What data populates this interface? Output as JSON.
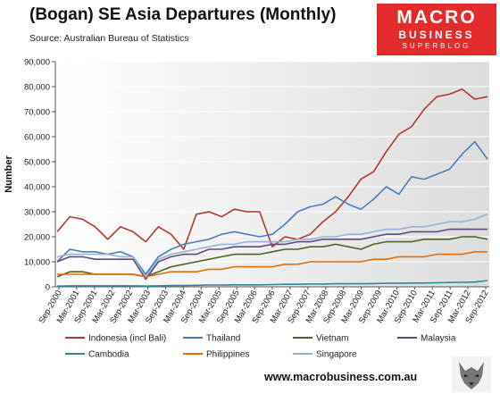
{
  "header": {
    "title": "(Bogan) SE Asia Departures (Monthly)",
    "subtitle": "Source: Australian Bureau of Statistics"
  },
  "logo": {
    "line1": "MACRO",
    "line2": "BUSINESS",
    "line3": "SUPERBLOG"
  },
  "footer": {
    "website": "www.macrobusiness.com.au"
  },
  "chart_data": {
    "type": "line",
    "ylabel": "Number",
    "ylim": [
      0,
      90000
    ],
    "ytick_values": [
      0,
      10000,
      20000,
      30000,
      40000,
      50000,
      60000,
      70000,
      80000,
      90000
    ],
    "ytick_labels": [
      "0",
      "10,000",
      "20,000",
      "30,000",
      "40,000",
      "50,000",
      "60,000",
      "70,000",
      "80,000",
      "90,000"
    ],
    "xtick_labels": [
      "Sep-2000",
      "Mar-2001",
      "Sep-2001",
      "Mar-2002",
      "Sep-2002",
      "Mar-2003",
      "Sep-2003",
      "Mar-2004",
      "Sep-2004",
      "Mar-2005",
      "Sep-2005",
      "Mar-2006",
      "Sep-2006",
      "Mar-2007",
      "Sep-2007",
      "Mar-2008",
      "Sep-2008",
      "Mar-2009",
      "Sep-2009",
      "Mar-2010",
      "Sep-2010",
      "Mar-2011",
      "Sep-2011",
      "Mar-2012",
      "Sep-2012"
    ],
    "legend_position": "bottom",
    "series": [
      {
        "name": "Indonesia (incl Bali)",
        "color": "#b03a2e",
        "values": [
          22000,
          28000,
          27000,
          24000,
          19000,
          24000,
          22000,
          18000,
          24000,
          21000,
          15000,
          29000,
          30000,
          28000,
          31000,
          30000,
          30000,
          16000,
          20000,
          19000,
          21000,
          26000,
          30000,
          36000,
          43000,
          46000,
          54000,
          61000,
          64000,
          71000,
          76000,
          77000,
          79000,
          75000,
          76000
        ]
      },
      {
        "name": "Thailand",
        "color": "#4a7ebb",
        "values": [
          10000,
          15000,
          14000,
          14000,
          13000,
          14000,
          12000,
          5000,
          12000,
          15000,
          17000,
          18000,
          19000,
          21000,
          22000,
          21000,
          20000,
          21000,
          25000,
          30000,
          32000,
          33000,
          36000,
          33000,
          31000,
          35000,
          40000,
          37000,
          44000,
          43000,
          45000,
          47000,
          53000,
          58000,
          51000
        ]
      },
      {
        "name": "Vietnam",
        "color": "#4f6228",
        "values": [
          4000,
          6000,
          6000,
          5000,
          5000,
          5000,
          5000,
          4000,
          6000,
          8000,
          9000,
          10000,
          11000,
          12000,
          13000,
          13000,
          13000,
          14000,
          15000,
          15000,
          16000,
          16000,
          17000,
          16000,
          15000,
          17000,
          18000,
          18000,
          18000,
          19000,
          19000,
          19000,
          20000,
          20000,
          19000
        ]
      },
      {
        "name": "Malaysia",
        "color": "#604a7b",
        "values": [
          10000,
          12000,
          12000,
          11000,
          11000,
          11000,
          11000,
          3000,
          10000,
          12000,
          13000,
          13000,
          15000,
          15000,
          16000,
          16000,
          16000,
          17000,
          17000,
          18000,
          18000,
          19000,
          19000,
          19000,
          19000,
          20000,
          21000,
          21000,
          22000,
          22000,
          22000,
          23000,
          23000,
          23000,
          23000
        ]
      },
      {
        "name": "Cambodia",
        "color": "#31859c",
        "values": [
          300,
          400,
          400,
          400,
          400,
          400,
          400,
          300,
          400,
          500,
          500,
          600,
          700,
          700,
          800,
          800,
          800,
          900,
          1000,
          1000,
          1100,
          1100,
          1200,
          1200,
          1200,
          1300,
          1400,
          1400,
          1500,
          1500,
          1600,
          1700,
          1800,
          1900,
          2500
        ]
      },
      {
        "name": "Philippines",
        "color": "#e46c0a",
        "values": [
          5000,
          5000,
          5000,
          5000,
          5000,
          5000,
          5000,
          4000,
          5000,
          6000,
          6000,
          6000,
          7000,
          7000,
          8000,
          8000,
          8000,
          8000,
          9000,
          9000,
          10000,
          10000,
          10000,
          10000,
          10000,
          11000,
          11000,
          12000,
          12000,
          12000,
          13000,
          13000,
          13000,
          14000,
          14000
        ]
      },
      {
        "name": "Singapore",
        "color": "#95b3d7",
        "values": [
          12000,
          13000,
          13000,
          13000,
          13000,
          12000,
          12000,
          4000,
          11000,
          13000,
          14000,
          15000,
          16000,
          17000,
          17000,
          18000,
          18000,
          18000,
          18000,
          19000,
          19000,
          20000,
          20000,
          21000,
          21000,
          22000,
          23000,
          23000,
          24000,
          24000,
          25000,
          26000,
          26000,
          27000,
          29000
        ]
      }
    ]
  }
}
